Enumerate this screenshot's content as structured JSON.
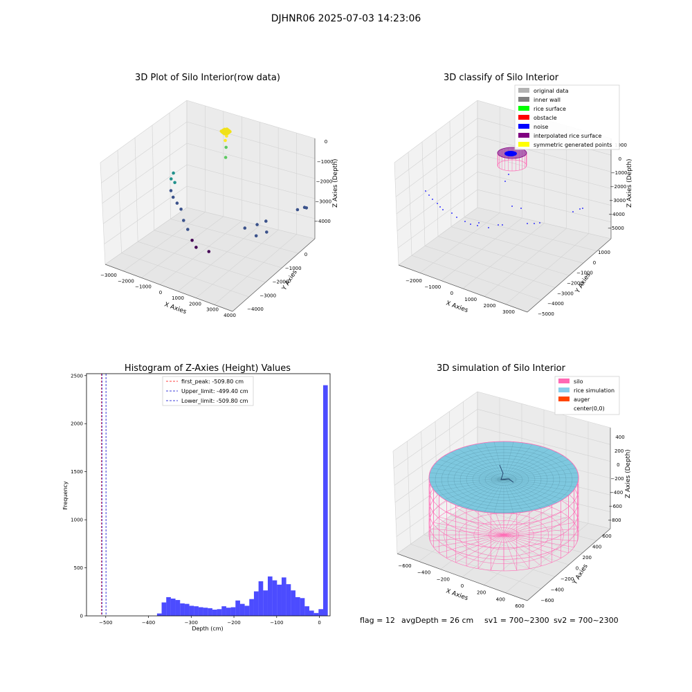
{
  "suptitle": "DJHNR06 2025-07-03 14:23:06",
  "status_line": {
    "flag": "flag = 12",
    "avg_depth": "avgDepth = 26 cm",
    "sv1": "sv1 = 700~2300",
    "sv2": "sv2 = 700~2300"
  },
  "chart_data": [
    {
      "type": "scatter",
      "projection": "3d",
      "title": "3D Plot of Silo Interior(row data)",
      "xlabel": "X Axies",
      "ylabel": "Y Axies",
      "zlabel": "Z Axies (Depth)",
      "xticks": [
        "−3000",
        "−2000",
        "−1000",
        "0",
        "1000",
        "2000",
        "3000",
        "4000"
      ],
      "yticks": [
        "0",
        "−1000",
        "−2000",
        "−3000",
        "−4000"
      ],
      "zticks": [
        "0",
        "−1000",
        "−2000",
        "−3000",
        "−4000"
      ],
      "xlim": [
        -3000,
        4000
      ],
      "ylim": [
        -4200,
        700
      ],
      "zlim": [
        -4600,
        100
      ],
      "grid": true,
      "colormap": [
        "#440154",
        "#3b528b",
        "#21918c",
        "#5ec962",
        "#fde725"
      ],
      "points": [
        {
          "x": 0,
          "y": 0,
          "z": 0
        },
        {
          "x": 80,
          "y": 60,
          "z": -50
        },
        {
          "x": 150,
          "y": -50,
          "z": -30
        },
        {
          "x": 100,
          "y": 120,
          "z": -80
        },
        {
          "x": -60,
          "y": 50,
          "z": -60
        },
        {
          "x": 60,
          "y": -20,
          "z": -150
        },
        {
          "x": 10,
          "y": 80,
          "z": -200
        },
        {
          "x": 120,
          "y": 40,
          "z": -120
        },
        {
          "x": -30,
          "y": -40,
          "z": -90
        },
        {
          "x": 40,
          "y": 20,
          "z": -260
        },
        {
          "x": 30,
          "y": -60,
          "z": -420
        },
        {
          "x": 0,
          "y": 0,
          "z": -780
        },
        {
          "x": -40,
          "y": -10,
          "z": -1250
        },
        {
          "x": -2700,
          "y": -300,
          "z": -2400
        },
        {
          "x": -2650,
          "y": -500,
          "z": -2550
        },
        {
          "x": -2550,
          "y": -400,
          "z": -2750
        },
        {
          "x": -2500,
          "y": -700,
          "z": -2950
        },
        {
          "x": -2300,
          "y": -800,
          "z": -3150
        },
        {
          "x": -2000,
          "y": -900,
          "z": -3300
        },
        {
          "x": -1700,
          "y": -1000,
          "z": -3450
        },
        {
          "x": -1300,
          "y": -1300,
          "z": -3700
        },
        {
          "x": -900,
          "y": -1500,
          "z": -3900
        },
        {
          "x": -400,
          "y": -1800,
          "z": -4100
        },
        {
          "x": 0,
          "y": -2000,
          "z": -4200
        },
        {
          "x": 600,
          "y": -1900,
          "z": -4300
        },
        {
          "x": 1600,
          "y": -800,
          "z": -3650
        },
        {
          "x": 2100,
          "y": -600,
          "z": -3500
        },
        {
          "x": 2400,
          "y": -400,
          "z": -3400
        },
        {
          "x": 3600,
          "y": 200,
          "z": -3000
        },
        {
          "x": 3900,
          "y": 300,
          "z": -2900
        },
        {
          "x": 4000,
          "y": 300,
          "z": -2900
        },
        {
          "x": 2500,
          "y": -1100,
          "z": -3600
        },
        {
          "x": 2800,
          "y": -800,
          "z": -3550
        }
      ]
    },
    {
      "type": "scatter",
      "projection": "3d",
      "title": "3D classify of Silo Interior",
      "xlabel": "X Axies",
      "ylabel": "Y Axies",
      "zlabel": "Z Axies (Depth)",
      "xticks": [
        "−2000",
        "−1000",
        "0",
        "1000",
        "2000",
        "3000"
      ],
      "yticks": [
        "1000",
        "0",
        "−1000",
        "−2000",
        "−3000",
        "−4000",
        "−5000"
      ],
      "zticks": [
        "1000",
        "0",
        "−1000",
        "−2000",
        "−3000",
        "−4000",
        "−5000"
      ],
      "xlim": [
        -2700,
        3600
      ],
      "ylim": [
        -5200,
        1300
      ],
      "zlim": [
        -5400,
        1200
      ],
      "grid": true,
      "legend_position": "top-right",
      "legend": [
        {
          "label": "original data",
          "color": "#b3b3b3"
        },
        {
          "label": "inner wall",
          "color": "#808080"
        },
        {
          "label": "rice surface",
          "color": "#00ff00"
        },
        {
          "label": "obstacle",
          "color": "#ff0000"
        },
        {
          "label": "noise",
          "color": "#0000ff"
        },
        {
          "label": "interpolated rice surface",
          "color": "#800080"
        },
        {
          "label": "symmetric generated points",
          "color": "#ffff00"
        }
      ]
    },
    {
      "type": "histogram",
      "title": "Histogram of Z-Axies (Height) Values",
      "xlabel": "Depth (cm)",
      "ylabel": "Frequency",
      "xlim": [
        -545,
        25
      ],
      "ylim": [
        0,
        2520
      ],
      "xticks": [
        -500,
        -400,
        -300,
        -200,
        -100,
        0
      ],
      "xtick_labels": [
        "−500",
        "−400",
        "−300",
        "−200",
        "−100",
        "0"
      ],
      "yticks": [
        0,
        500,
        1000,
        1500,
        2000,
        2500
      ],
      "bar_color": "#0000ff",
      "bin_width": 10.8,
      "bin_start": -380,
      "values": [
        25,
        140,
        195,
        180,
        165,
        130,
        125,
        105,
        100,
        90,
        85,
        80,
        65,
        70,
        100,
        85,
        90,
        160,
        125,
        105,
        175,
        255,
        360,
        265,
        410,
        370,
        325,
        400,
        330,
        265,
        195,
        185,
        100,
        55,
        30,
        70,
        2400
      ],
      "vlines": [
        {
          "x": -509.8,
          "color": "#ff0000",
          "label": "first_peak: -509.80 cm"
        },
        {
          "x": -499.4,
          "color": "#0000cc",
          "label": "Upper_limit: -499.40 cm"
        },
        {
          "x": -509.8,
          "color": "#0000cc",
          "label": "Lower_limit: -509.80 cm"
        }
      ],
      "legend_position": "top-center"
    },
    {
      "type": "surface",
      "projection": "3d",
      "title": "3D simulation of Silo Interior",
      "xlabel": "X Axies",
      "ylabel": "Y Axies",
      "zlabel": "Z Axies (Depth)",
      "xticks": [
        "−600",
        "−400",
        "−200",
        "0",
        "200",
        "400",
        "600"
      ],
      "yticks": [
        "600",
        "400",
        "200",
        "0",
        "−200",
        "−400",
        "−600"
      ],
      "zticks": [
        "400",
        "200",
        "0",
        "−200",
        "−400",
        "−600",
        "−800"
      ],
      "xlim": [
        -650,
        650
      ],
      "ylim": [
        -650,
        650
      ],
      "zlim": [
        -850,
        450
      ],
      "grid": true,
      "legend_position": "top-right",
      "legend": [
        {
          "label": "silo",
          "color": "#ff69b4"
        },
        {
          "label": "rice simulation",
          "color": "#87ceeb"
        },
        {
          "label": "auger",
          "color": "#ff4500"
        },
        {
          "label": "center(0,0)",
          "color": "#ffffff"
        }
      ]
    }
  ]
}
